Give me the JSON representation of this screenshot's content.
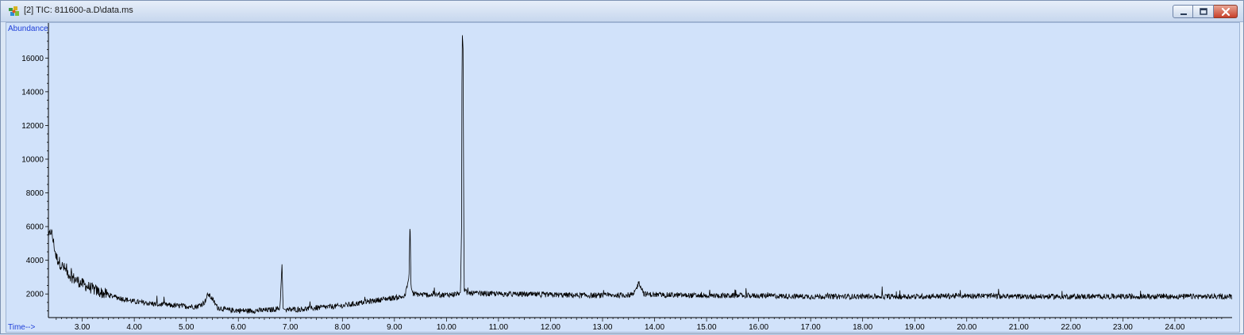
{
  "window": {
    "title": "[2] TIC: 811600-a.D\\data.ms",
    "icons": {
      "app": "chromatogram-app-icon",
      "minimize": "minimize-icon",
      "maximize": "maximize-icon",
      "close": "close-icon"
    }
  },
  "colors": {
    "plot_background": "#d1e2fa",
    "trace": "#000000",
    "axis_label": "#1f3fd8"
  },
  "chart_data": {
    "type": "line",
    "ylabel": "Abundance",
    "xlabel": "Time-->",
    "xlim": [
      2.35,
      25.1
    ],
    "ylim": [
      600,
      17800
    ],
    "x_ticks": [
      "3.00",
      "4.00",
      "5.00",
      "6.00",
      "7.00",
      "8.00",
      "9.00",
      "10.00",
      "11.00",
      "12.00",
      "13.00",
      "14.00",
      "15.00",
      "16.00",
      "17.00",
      "18.00",
      "19.00",
      "20.00",
      "21.00",
      "22.00",
      "23.00",
      "24.00"
    ],
    "y_ticks": [
      "2000",
      "4000",
      "6000",
      "8000",
      "10000",
      "12000",
      "14000",
      "16000"
    ],
    "grid": false,
    "series": [
      {
        "x": [
          2.35,
          2.4,
          2.5,
          2.6,
          2.8,
          3.0,
          3.3,
          3.6,
          4.0,
          4.4,
          4.8,
          5.2,
          5.35,
          5.42,
          5.5,
          5.6,
          5.8,
          6.2,
          6.6,
          6.8,
          6.84,
          6.86,
          6.88,
          6.92,
          7.2,
          7.6,
          8.0,
          8.4,
          8.8,
          9.2,
          9.28,
          9.3,
          9.32,
          9.36,
          9.6,
          10.0,
          10.2,
          10.27,
          10.29,
          10.3,
          10.32,
          10.34,
          10.4,
          11.0,
          12.0,
          13.0,
          13.6,
          13.7,
          13.8,
          14.0,
          15.0,
          16.0,
          17.0,
          18.0,
          19.0,
          20.0,
          21.0,
          22.0,
          23.0,
          24.0,
          25.0,
          25.1
        ],
        "y": [
          5200,
          5800,
          4200,
          3700,
          3000,
          2600,
          2150,
          1850,
          1550,
          1400,
          1300,
          1250,
          1500,
          2000,
          1700,
          1200,
          1050,
          1000,
          1050,
          1150,
          3800,
          1150,
          1100,
          1050,
          1100,
          1200,
          1300,
          1500,
          1700,
          1850,
          3000,
          6500,
          2400,
          2000,
          1950,
          1950,
          2000,
          2100,
          6000,
          17600,
          16600,
          2200,
          2050,
          2000,
          1950,
          1900,
          1950,
          2700,
          2000,
          1950,
          1900,
          1900,
          1850,
          1850,
          1850,
          1900,
          1850,
          1850,
          1850,
          1850,
          1850,
          1850
        ]
      }
    ]
  }
}
